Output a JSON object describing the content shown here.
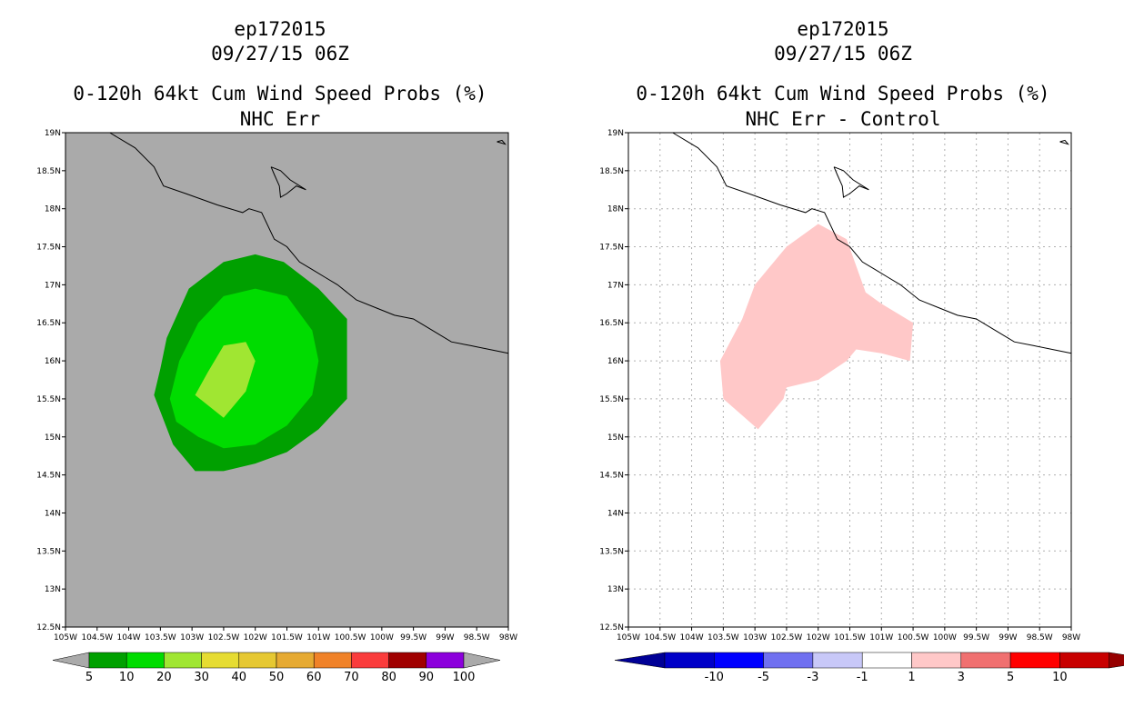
{
  "left": {
    "title1": "ep172015",
    "title2": "09/27/15 06Z",
    "title3": "0-120h 64kt Cum Wind Speed Probs (%)",
    "title4": "NHC Err",
    "background": "#aaaaaa",
    "colorbar": {
      "labels": [
        "5",
        "10",
        "20",
        "30",
        "40",
        "50",
        "60",
        "70",
        "80",
        "90",
        "100"
      ],
      "colors": [
        "#00a000",
        "#00dc00",
        "#a0e632",
        "#e6dc32",
        "#e6c832",
        "#e6aa32",
        "#f08228",
        "#fa3c3c",
        "#a00000",
        "#8c00dc"
      ],
      "end_color": "#aaaaaa"
    }
  },
  "right": {
    "title1": "ep172015",
    "title2": "09/27/15 06Z",
    "title3": "0-120h 64kt Cum Wind Speed Probs (%)",
    "title4": "NHC Err - Control",
    "background": "#ffffff",
    "colorbar": {
      "labels": [
        "-10",
        "-5",
        "-3",
        "-1",
        "1",
        "3",
        "5",
        "10"
      ],
      "colors": [
        "#0000c8",
        "#0000ff",
        "#7070f0",
        "#c8c8f8",
        "#ffffff",
        "#ffc8c8",
        "#f07070",
        "#ff0000",
        "#c80000"
      ],
      "left_color": "#000096",
      "right_color": "#960000"
    }
  },
  "chart_data": [
    {
      "type": "contour-map",
      "title": "0-120h 64kt Cum Wind Speed Probs (%) - NHC Err",
      "storm": "ep172015",
      "valid": "09/27/15 06Z",
      "xlim": [
        -105,
        -98
      ],
      "ylim": [
        12.5,
        19
      ],
      "x_ticks": [
        "105W",
        "104.5W",
        "104W",
        "103.5W",
        "103W",
        "102.5W",
        "102W",
        "101.5W",
        "101W",
        "100.5W",
        "100W",
        "99.5W",
        "99W",
        "98.5W",
        "98W"
      ],
      "y_ticks": [
        "12.5N",
        "13N",
        "13.5N",
        "14N",
        "14.5N",
        "15N",
        "15.5N",
        "16N",
        "16.5N",
        "17N",
        "17.5N",
        "18N",
        "18.5N",
        "19N"
      ],
      "contours": [
        {
          "level": "5-10",
          "color": "#00a000",
          "lon": [
            -103.6,
            -103.5,
            -103.4,
            -103.05,
            -102.5,
            -102.0,
            -101.55,
            -101.0,
            -100.55,
            -100.55,
            -101.0,
            -101.5,
            -102.0,
            -102.5,
            -102.95,
            -103.3,
            -103.6
          ],
          "lat": [
            15.55,
            15.9,
            16.3,
            16.95,
            17.3,
            17.4,
            17.3,
            16.95,
            16.55,
            15.5,
            15.1,
            14.8,
            14.65,
            14.55,
            14.55,
            14.9,
            15.55
          ]
        },
        {
          "level": "10-20",
          "color": "#00dc00",
          "lon": [
            -103.35,
            -103.2,
            -102.9,
            -102.5,
            -102.0,
            -101.5,
            -101.1,
            -101.0,
            -101.1,
            -101.5,
            -102.0,
            -102.5,
            -102.9,
            -103.25,
            -103.35
          ],
          "lat": [
            15.5,
            16.0,
            16.5,
            16.85,
            16.95,
            16.85,
            16.4,
            16.0,
            15.55,
            15.15,
            14.9,
            14.85,
            15.0,
            15.2,
            15.5
          ]
        },
        {
          "level": "20-30",
          "color": "#a0e632",
          "lon": [
            -102.95,
            -102.75,
            -102.5,
            -102.15,
            -102.0,
            -102.15,
            -102.5,
            -102.95
          ],
          "lat": [
            15.55,
            15.85,
            16.2,
            16.25,
            16.0,
            15.6,
            15.25,
            15.55
          ]
        }
      ]
    },
    {
      "type": "contour-map",
      "title": "0-120h 64kt Cum Wind Speed Probs (%) - NHC Err - Control",
      "storm": "ep172015",
      "valid": "09/27/15 06Z",
      "xlim": [
        -105,
        -98
      ],
      "ylim": [
        12.5,
        19
      ],
      "x_ticks": [
        "105W",
        "104.5W",
        "104W",
        "103.5W",
        "103W",
        "102.5W",
        "102W",
        "101.5W",
        "101W",
        "100.5W",
        "100W",
        "99.5W",
        "99W",
        "98.5W",
        "98W"
      ],
      "y_ticks": [
        "12.5N",
        "13N",
        "13.5N",
        "14N",
        "14.5N",
        "15N",
        "15.5N",
        "16N",
        "16.5N",
        "17N",
        "17.5N",
        "18N",
        "18.5N",
        "19N"
      ],
      "contours": [
        {
          "level": "1-3",
          "color": "#ffc8c8",
          "lon": [
            -103.55,
            -103.2,
            -103.0,
            -102.5,
            -102.0,
            -101.55,
            -101.25,
            -101.0,
            -100.5,
            -100.55,
            -101.0,
            -101.4,
            -101.55,
            -102.0,
            -102.5,
            -102.55,
            -102.95,
            -103.5,
            -103.55
          ],
          "lat": [
            16.0,
            16.55,
            17.0,
            17.5,
            17.8,
            17.6,
            16.9,
            16.75,
            16.5,
            16.0,
            16.1,
            16.15,
            16.0,
            15.75,
            15.65,
            15.5,
            15.1,
            15.5,
            16.0
          ]
        }
      ]
    }
  ]
}
